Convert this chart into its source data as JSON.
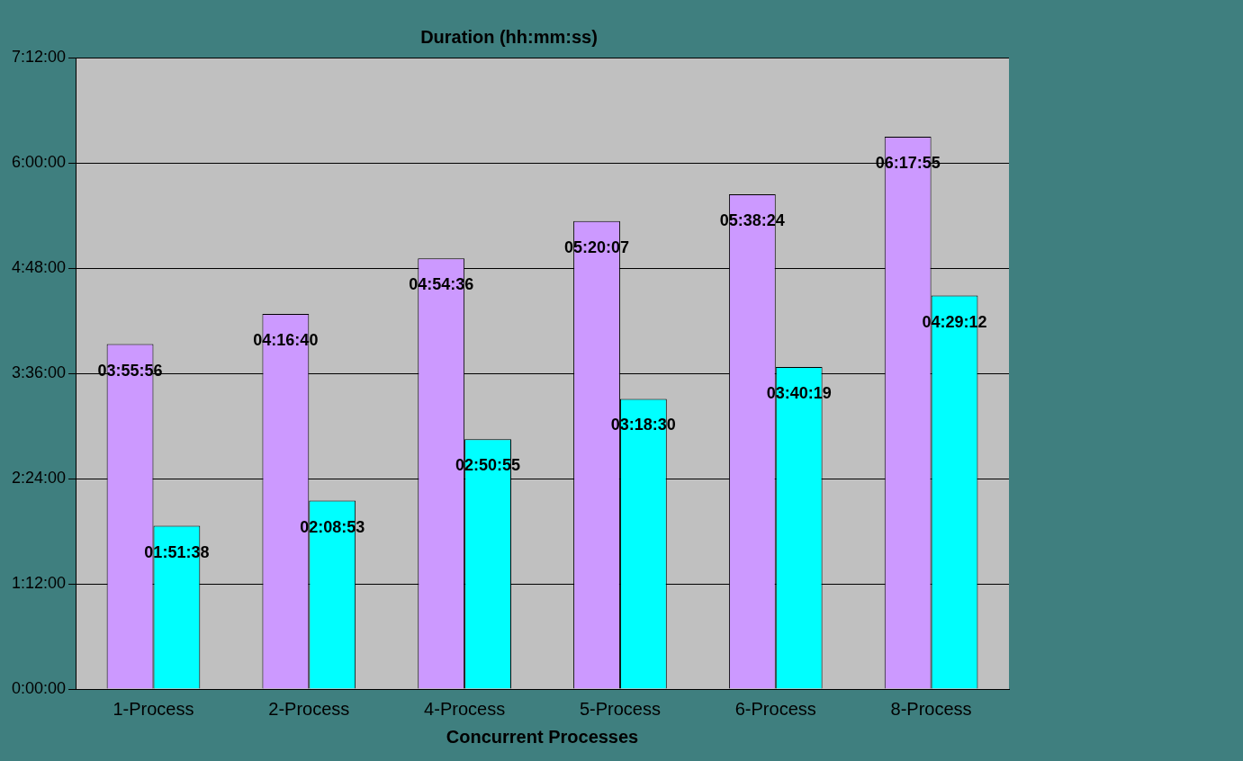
{
  "chart_data": {
    "type": "bar",
    "title": "Duration (hh:mm:ss)",
    "xlabel": "Concurrent Processes",
    "categories": [
      "1-Process",
      "2-Process",
      "4-Process",
      "5-Process",
      "6-Process",
      "8-Process"
    ],
    "series": [
      {
        "color": "#cc99ff",
        "values": [
          3.93222,
          4.27778,
          4.91,
          5.33528,
          5.64,
          6.29861
        ],
        "value_labels": [
          "03:55:56",
          "04:16:40",
          "04:54:36",
          "05:20:07",
          "05:38:24",
          "06:17:55"
        ]
      },
      {
        "color": "#00ffff",
        "values": [
          1.86056,
          2.14806,
          2.84861,
          3.30833,
          3.67194,
          4.48667
        ],
        "value_labels": [
          "01:51:38",
          "02:08:53",
          "02:50:55",
          "03:18:30",
          "03:40:19",
          "04:29:12"
        ]
      }
    ],
    "ylim": [
      0,
      7.2
    ],
    "yticks": [
      {
        "value": 0,
        "label": "0:00:00"
      },
      {
        "value": 1.2,
        "label": "1:12:00"
      },
      {
        "value": 2.4,
        "label": "2:24:00"
      },
      {
        "value": 3.6,
        "label": "3:36:00"
      },
      {
        "value": 4.8,
        "label": "4:48:00"
      },
      {
        "value": 6,
        "label": "6:00:00"
      },
      {
        "value": 7.2,
        "label": "7:12:00"
      }
    ],
    "grid": "y",
    "legend": false
  }
}
